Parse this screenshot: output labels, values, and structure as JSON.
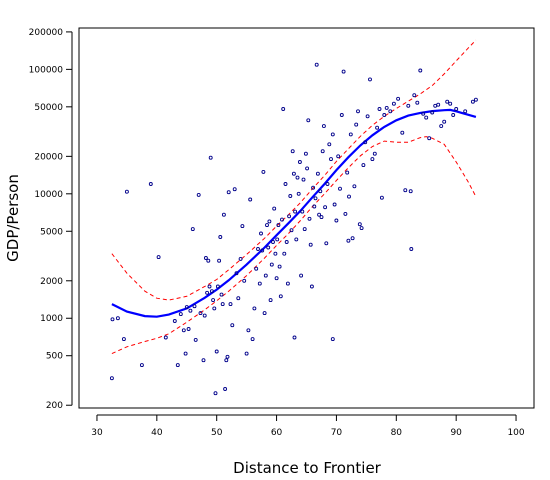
{
  "chart_data": {
    "type": "scatter",
    "title": "",
    "xlabel": "Distance to Frontier",
    "ylabel": "GDP/Person",
    "xlim": [
      27,
      103
    ],
    "ylim": [
      190,
      215000
    ],
    "y_scale": "log",
    "x_ticks": [
      30,
      40,
      50,
      60,
      70,
      80,
      90,
      100
    ],
    "y_ticks": [
      200,
      500,
      1000,
      2000,
      5000,
      10000,
      20000,
      50000,
      100000,
      200000
    ],
    "y_tick_labels": [
      "200",
      "500",
      "1000",
      "2000",
      "5000",
      "10000",
      "20000",
      "50000",
      "100000",
      "200000"
    ],
    "colors": {
      "points": "#00008b",
      "fit": "#0000ff",
      "band": "#ff0000"
    },
    "points": [
      [
        32.5,
        330
      ],
      [
        32.6,
        980
      ],
      [
        33.5,
        1000
      ],
      [
        34.5,
        680
      ],
      [
        35.0,
        10400
      ],
      [
        37.5,
        420
      ],
      [
        39.0,
        12000
      ],
      [
        40.3,
        3100
      ],
      [
        41.5,
        700
      ],
      [
        43.0,
        950
      ],
      [
        43.5,
        420
      ],
      [
        44.0,
        1080
      ],
      [
        44.5,
        800
      ],
      [
        44.8,
        520
      ],
      [
        45.0,
        1230
      ],
      [
        45.3,
        820
      ],
      [
        45.6,
        1150
      ],
      [
        46.0,
        5200
      ],
      [
        46.3,
        1250
      ],
      [
        46.5,
        670
      ],
      [
        47.0,
        9800
      ],
      [
        47.3,
        1100
      ],
      [
        47.8,
        460
      ],
      [
        48.0,
        1050
      ],
      [
        48.2,
        3050
      ],
      [
        48.4,
        1600
      ],
      [
        48.6,
        2900
      ],
      [
        48.8,
        1800
      ],
      [
        49.0,
        19500
      ],
      [
        49.2,
        1650
      ],
      [
        49.4,
        1400
      ],
      [
        49.6,
        1200
      ],
      [
        49.8,
        250
      ],
      [
        50.0,
        540
      ],
      [
        50.2,
        1800
      ],
      [
        50.4,
        2900
      ],
      [
        50.6,
        4500
      ],
      [
        50.8,
        1550
      ],
      [
        51.0,
        1300
      ],
      [
        51.2,
        6800
      ],
      [
        51.4,
        270
      ],
      [
        51.6,
        460
      ],
      [
        51.8,
        490
      ],
      [
        52.0,
        10300
      ],
      [
        52.3,
        1300
      ],
      [
        52.6,
        880
      ],
      [
        53.0,
        10900
      ],
      [
        53.3,
        2300
      ],
      [
        53.6,
        1450
      ],
      [
        54.0,
        3000
      ],
      [
        54.3,
        5500
      ],
      [
        54.6,
        2000
      ],
      [
        55.0,
        520
      ],
      [
        55.3,
        800
      ],
      [
        55.6,
        9000
      ],
      [
        56.0,
        680
      ],
      [
        56.3,
        1200
      ],
      [
        56.6,
        2500
      ],
      [
        56.9,
        3600
      ],
      [
        57.2,
        1900
      ],
      [
        57.4,
        4800
      ],
      [
        57.6,
        3500
      ],
      [
        57.8,
        15000
      ],
      [
        58.0,
        1100
      ],
      [
        58.2,
        2200
      ],
      [
        58.4,
        5600
      ],
      [
        58.6,
        3700
      ],
      [
        58.8,
        6000
      ],
      [
        59.0,
        1400
      ],
      [
        59.2,
        2700
      ],
      [
        59.4,
        4100
      ],
      [
        59.6,
        7600
      ],
      [
        59.8,
        3300
      ],
      [
        60.0,
        2100
      ],
      [
        60.1,
        4300
      ],
      [
        60.3,
        5600
      ],
      [
        60.5,
        2600
      ],
      [
        60.7,
        1500
      ],
      [
        60.9,
        6200
      ],
      [
        61.1,
        48000
      ],
      [
        61.3,
        3300
      ],
      [
        61.5,
        12000
      ],
      [
        61.7,
        4100
      ],
      [
        61.9,
        1900
      ],
      [
        62.1,
        6600
      ],
      [
        62.3,
        9600
      ],
      [
        62.5,
        5100
      ],
      [
        62.7,
        22000
      ],
      [
        62.9,
        14500
      ],
      [
        63.1,
        7200
      ],
      [
        63.3,
        4300
      ],
      [
        63.5,
        13500
      ],
      [
        63.7,
        10000
      ],
      [
        63.9,
        18000
      ],
      [
        64.1,
        2200
      ],
      [
        64.3,
        7200
      ],
      [
        64.5,
        13000
      ],
      [
        64.7,
        5200
      ],
      [
        64.9,
        21000
      ],
      [
        65.1,
        16000
      ],
      [
        65.3,
        39000
      ],
      [
        65.5,
        6300
      ],
      [
        65.7,
        3900
      ],
      [
        65.9,
        1800
      ],
      [
        66.1,
        11200
      ],
      [
        66.3,
        7900
      ],
      [
        66.5,
        9200
      ],
      [
        66.7,
        109000
      ],
      [
        66.9,
        14500
      ],
      [
        67.1,
        6800
      ],
      [
        67.3,
        10500
      ],
      [
        67.5,
        6500
      ],
      [
        67.7,
        22000
      ],
      [
        67.9,
        35000
      ],
      [
        68.1,
        7800
      ],
      [
        68.3,
        4000
      ],
      [
        68.5,
        12000
      ],
      [
        68.8,
        25000
      ],
      [
        69.1,
        19000
      ],
      [
        69.4,
        30000
      ],
      [
        69.7,
        8200
      ],
      [
        70.0,
        6100
      ],
      [
        70.3,
        20000
      ],
      [
        70.6,
        11000
      ],
      [
        70.9,
        43000
      ],
      [
        71.2,
        96000
      ],
      [
        71.5,
        6900
      ],
      [
        71.8,
        14800
      ],
      [
        72.1,
        9500
      ],
      [
        72.4,
        30000
      ],
      [
        72.7,
        4400
      ],
      [
        73.0,
        11500
      ],
      [
        73.3,
        36000
      ],
      [
        73.6,
        46000
      ],
      [
        73.9,
        5700
      ],
      [
        74.2,
        5300
      ],
      [
        74.5,
        17000
      ],
      [
        74.8,
        26000
      ],
      [
        75.2,
        42000
      ],
      [
        75.6,
        83000
      ],
      [
        76.0,
        19000
      ],
      [
        76.4,
        21000
      ],
      [
        76.8,
        34000
      ],
      [
        77.2,
        48000
      ],
      [
        77.6,
        9300
      ],
      [
        78.0,
        43000
      ],
      [
        78.4,
        49000
      ],
      [
        79.0,
        46000
      ],
      [
        79.6,
        53000
      ],
      [
        80.3,
        58000
      ],
      [
        81.0,
        31000
      ],
      [
        81.5,
        10700
      ],
      [
        82.0,
        51000
      ],
      [
        82.5,
        3600
      ],
      [
        83.0,
        62000
      ],
      [
        83.5,
        54000
      ],
      [
        84.0,
        98000
      ],
      [
        84.5,
        44000
      ],
      [
        85.0,
        41000
      ],
      [
        85.5,
        28000
      ],
      [
        86.0,
        45000
      ],
      [
        86.5,
        51000
      ],
      [
        87.0,
        52000
      ],
      [
        87.5,
        35000
      ],
      [
        88.0,
        38000
      ],
      [
        88.5,
        55000
      ],
      [
        89.0,
        53000
      ],
      [
        89.5,
        43000
      ],
      [
        90.0,
        48000
      ],
      [
        91.5,
        46000
      ],
      [
        92.8,
        55000
      ],
      [
        93.3,
        57000
      ],
      [
        63.0,
        700
      ],
      [
        69.4,
        680
      ],
      [
        72.0,
        4200
      ],
      [
        82.4,
        10500
      ]
    ],
    "fit": [
      [
        32.5,
        1300
      ],
      [
        35,
        1130
      ],
      [
        38,
        1040
      ],
      [
        40,
        1030
      ],
      [
        42,
        1070
      ],
      [
        45,
        1200
      ],
      [
        48,
        1460
      ],
      [
        50,
        1700
      ],
      [
        52,
        2020
      ],
      [
        55,
        2700
      ],
      [
        58,
        3700
      ],
      [
        60,
        4650
      ],
      [
        62,
        5800
      ],
      [
        64,
        7300
      ],
      [
        66,
        9400
      ],
      [
        68,
        12000
      ],
      [
        70,
        15500
      ],
      [
        72,
        19700
      ],
      [
        74,
        24500
      ],
      [
        76,
        29500
      ],
      [
        78,
        34500
      ],
      [
        80,
        39000
      ],
      [
        82,
        42500
      ],
      [
        84,
        44700
      ],
      [
        86,
        46200
      ],
      [
        88,
        47000
      ],
      [
        89,
        47200
      ],
      [
        90,
        46000
      ],
      [
        91,
        44500
      ],
      [
        93.3,
        41500
      ]
    ],
    "band_upper": [
      [
        32.5,
        3300
      ],
      [
        35,
        2300
      ],
      [
        38,
        1650
      ],
      [
        40,
        1450
      ],
      [
        42,
        1400
      ],
      [
        45,
        1500
      ],
      [
        48,
        1800
      ],
      [
        50,
        2050
      ],
      [
        52,
        2450
      ],
      [
        55,
        3250
      ],
      [
        58,
        4400
      ],
      [
        60,
        5500
      ],
      [
        62,
        6800
      ],
      [
        64,
        8500
      ],
      [
        66,
        11000
      ],
      [
        68,
        14000
      ],
      [
        70,
        18200
      ],
      [
        72,
        23000
      ],
      [
        74,
        29000
      ],
      [
        76,
        35500
      ],
      [
        78,
        42000
      ],
      [
        80,
        48500
      ],
      [
        82,
        55500
      ],
      [
        84,
        63500
      ],
      [
        86,
        74000
      ],
      [
        88,
        92000
      ],
      [
        90,
        117000
      ],
      [
        92,
        148000
      ],
      [
        93.3,
        172000
      ]
    ],
    "band_lower": [
      [
        32.5,
        520
      ],
      [
        35,
        590
      ],
      [
        38,
        650
      ],
      [
        40,
        690
      ],
      [
        42,
        750
      ],
      [
        45,
        930
      ],
      [
        48,
        1170
      ],
      [
        50,
        1380
      ],
      [
        52,
        1650
      ],
      [
        55,
        2200
      ],
      [
        58,
        3050
      ],
      [
        60,
        3850
      ],
      [
        62,
        4800
      ],
      [
        64,
        6100
      ],
      [
        66,
        7900
      ],
      [
        68,
        10000
      ],
      [
        70,
        12800
      ],
      [
        72,
        16200
      ],
      [
        74,
        20200
      ],
      [
        76,
        24000
      ],
      [
        78,
        26500
      ],
      [
        80,
        26000
      ],
      [
        82,
        26000
      ],
      [
        84,
        28300
      ],
      [
        85,
        28800
      ],
      [
        86,
        28000
      ],
      [
        88,
        25000
      ],
      [
        90,
        18000
      ],
      [
        92,
        12500
      ],
      [
        93.3,
        9500
      ]
    ]
  }
}
